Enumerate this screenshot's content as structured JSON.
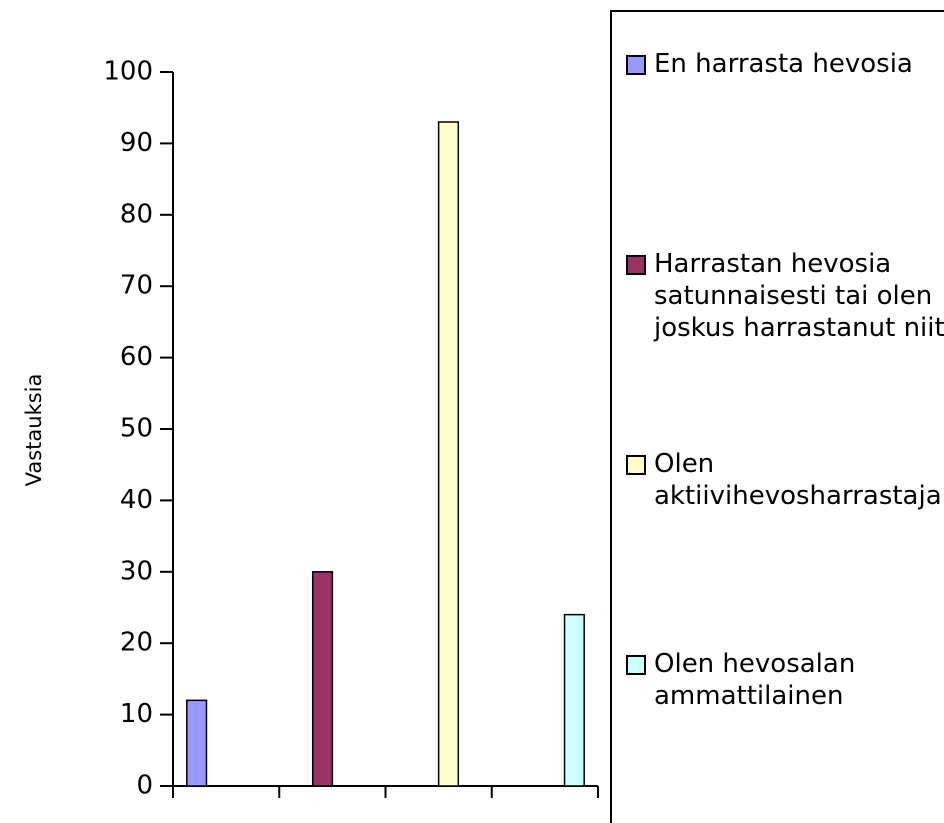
{
  "chart_data": {
    "type": "bar",
    "y_label": "Vastauksia",
    "categories": [
      null,
      null,
      null,
      null
    ],
    "series": [
      {
        "name": "En harrasta hevosia",
        "color": "#9999ff",
        "values": [
          12,
          null,
          null,
          null
        ]
      },
      {
        "name": "Harrastan hevosia satunnaisesti tai olen joskus harrastanut niitä",
        "color": "#993366",
        "values": [
          null,
          30,
          null,
          null
        ]
      },
      {
        "name": "Olen aktiivihevosharrastaja",
        "color": "#ffffcc",
        "values": [
          null,
          null,
          93,
          null
        ]
      },
      {
        "name": "Olen hevosalan ammattilainen",
        "color": "#ccffff",
        "values": [
          null,
          null,
          null,
          24
        ]
      }
    ],
    "ylim": [
      0,
      100
    ],
    "yticks": [
      0,
      10,
      20,
      30,
      40,
      50,
      60,
      70,
      80,
      90,
      100
    ],
    "grid": false,
    "legend": "right"
  }
}
